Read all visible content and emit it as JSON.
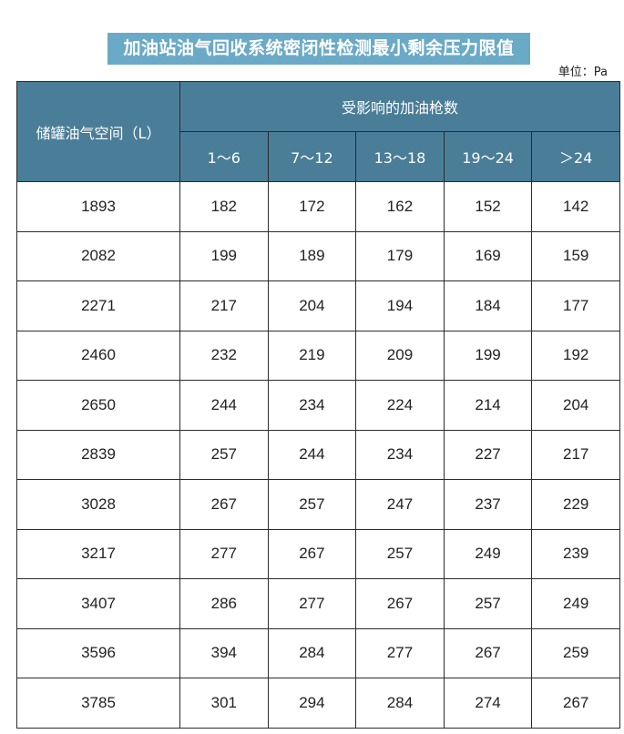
{
  "title": "加油站油气回收系统密闭性检测最小剩余压力限值",
  "unit": "单位：Pa",
  "table": {
    "row_header": "储罐油气空间（L）",
    "group_header": "受影响的加油枪数",
    "columns": [
      "1～6",
      "7～12",
      "13～18",
      "19～24",
      "＞24"
    ],
    "rows": [
      [
        "1893",
        "182",
        "172",
        "162",
        "152",
        "142"
      ],
      [
        "2082",
        "199",
        "189",
        "179",
        "169",
        "159"
      ],
      [
        "2271",
        "217",
        "204",
        "194",
        "184",
        "177"
      ],
      [
        "2460",
        "232",
        "219",
        "209",
        "199",
        "192"
      ],
      [
        "2650",
        "244",
        "234",
        "224",
        "214",
        "204"
      ],
      [
        "2839",
        "257",
        "244",
        "234",
        "227",
        "217"
      ],
      [
        "3028",
        "267",
        "257",
        "247",
        "237",
        "229"
      ],
      [
        "3217",
        "277",
        "267",
        "257",
        "249",
        "239"
      ],
      [
        "3407",
        "286",
        "277",
        "267",
        "257",
        "249"
      ],
      [
        "3596",
        "394",
        "284",
        "277",
        "267",
        "259"
      ],
      [
        "3785",
        "301",
        "294",
        "284",
        "274",
        "267"
      ]
    ]
  },
  "colors": {
    "title_bg": "#6aaac7",
    "header_bg": "#4a7d97"
  }
}
